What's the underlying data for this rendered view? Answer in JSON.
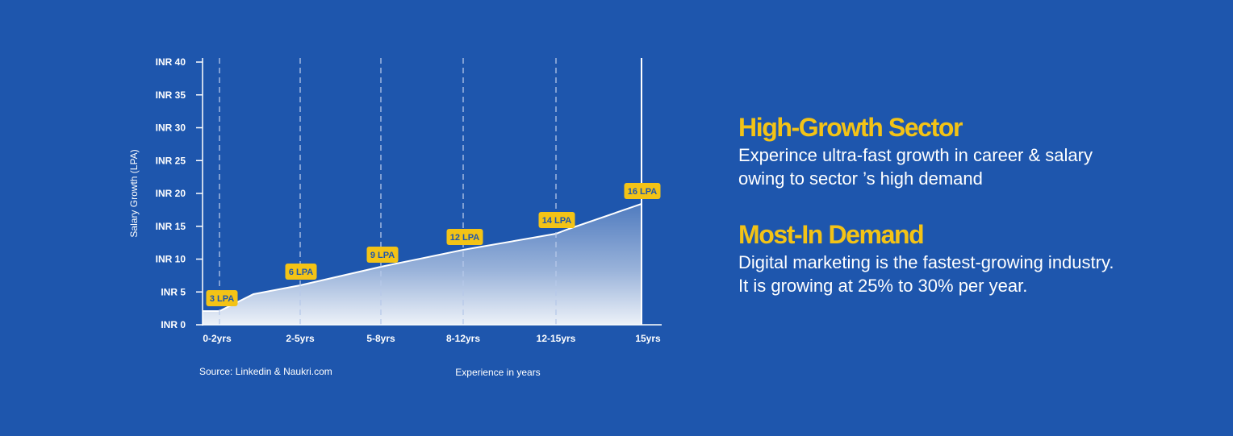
{
  "chart_data": {
    "type": "area",
    "ylabel": "Salary Growth (LPA)",
    "xlabel": "Experience in years",
    "source": "Source: Linkedin & Naukri.com",
    "y_ticks": [
      "INR 0",
      "INR 5",
      "INR 10",
      "INR 15",
      "INR 20",
      "INR 25",
      "INR 30",
      "INR 35",
      "INR 40"
    ],
    "y_tick_values": [
      0,
      5,
      10,
      15,
      20,
      25,
      30,
      35,
      40
    ],
    "ylim": [
      0,
      40
    ],
    "categories": [
      "0-2yrs",
      "2-5yrs",
      "5-8yrs",
      "8-12yrs",
      "12-15yrs",
      "15yrs"
    ],
    "data_labels": [
      "3 LPA",
      "6 LPA",
      "9 LPA",
      "12 LPA",
      "14 LPA",
      "16 LPA"
    ],
    "grid": "dashed vertical lines at categories",
    "colors": {
      "background": "#1e56ad",
      "label_fill": "#f3c316",
      "label_text": "#1e56ad",
      "line": "#ffffff"
    }
  },
  "info": {
    "high_growth": {
      "title": "High-Growth Sector",
      "text": "Experince ultra-fast growth in career & salary owing to sector ’s high demand"
    },
    "most_in_demand": {
      "title": "Most-In Demand",
      "text": "Digital marketing is the fastest-growing industry. It is growing at 25% to 30% per year."
    }
  }
}
